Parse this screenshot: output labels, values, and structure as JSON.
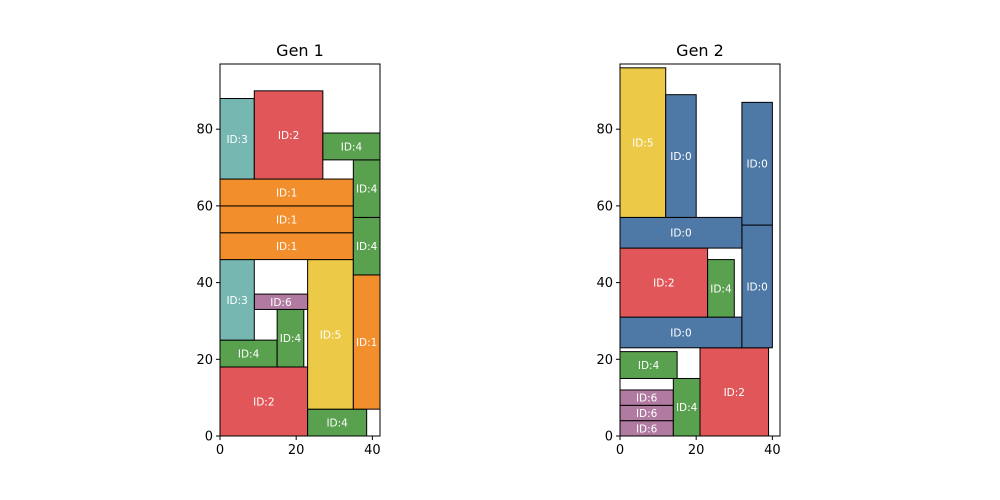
{
  "colors": {
    "ID:0": "#4e79a7",
    "ID:1": "#f28e2b",
    "ID:2": "#e15759",
    "ID:3": "#76b7b2",
    "ID:4": "#59a14f",
    "ID:5": "#edc948",
    "ID:6": "#b07aa1"
  },
  "chart_data": [
    {
      "type": "rectangle-packing",
      "title": "Gen 1",
      "xlim": [
        0,
        42
      ],
      "ylim": [
        0,
        97
      ],
      "xticks": [
        0,
        20,
        40
      ],
      "yticks": [
        0,
        20,
        40,
        60,
        80
      ],
      "grid": false,
      "rects": [
        {
          "label": "ID:2",
          "x": 0,
          "y": 0,
          "w": 23,
          "h": 18
        },
        {
          "label": "ID:4",
          "x": 23,
          "y": 0,
          "w": 15.5,
          "h": 7
        },
        {
          "label": "ID:5",
          "x": 23,
          "y": 7,
          "w": 12,
          "h": 39
        },
        {
          "label": "ID:1",
          "x": 35,
          "y": 7,
          "w": 7,
          "h": 35
        },
        {
          "label": "ID:4",
          "x": 0,
          "y": 18,
          "w": 15,
          "h": 7
        },
        {
          "label": "ID:4",
          "x": 15,
          "y": 18,
          "w": 7,
          "h": 15
        },
        {
          "label": "ID:6",
          "x": 9,
          "y": 33,
          "w": 14,
          "h": 4
        },
        {
          "label": "ID:3",
          "x": 0,
          "y": 25,
          "w": 9,
          "h": 21
        },
        {
          "label": "ID:1",
          "x": 0,
          "y": 46,
          "w": 35,
          "h": 7
        },
        {
          "label": "ID:1",
          "x": 0,
          "y": 53,
          "w": 35,
          "h": 7
        },
        {
          "label": "ID:1",
          "x": 0,
          "y": 60,
          "w": 35,
          "h": 7
        },
        {
          "label": "ID:4",
          "x": 35,
          "y": 42,
          "w": 7,
          "h": 15
        },
        {
          "label": "ID:4",
          "x": 35,
          "y": 57,
          "w": 7,
          "h": 15
        },
        {
          "label": "ID:3",
          "x": 0,
          "y": 67,
          "w": 9,
          "h": 21
        },
        {
          "label": "ID:2",
          "x": 9,
          "y": 67,
          "w": 18,
          "h": 23
        },
        {
          "label": "ID:4",
          "x": 27,
          "y": 72,
          "w": 15,
          "h": 7
        }
      ]
    },
    {
      "type": "rectangle-packing",
      "title": "Gen 2",
      "xlim": [
        0,
        42
      ],
      "ylim": [
        0,
        97
      ],
      "xticks": [
        0,
        20,
        40
      ],
      "yticks": [
        0,
        20,
        40,
        60,
        80
      ],
      "grid": false,
      "rects": [
        {
          "label": "ID:6",
          "x": 0,
          "y": 0,
          "w": 14,
          "h": 4
        },
        {
          "label": "ID:6",
          "x": 0,
          "y": 4,
          "w": 14,
          "h": 4
        },
        {
          "label": "ID:6",
          "x": 0,
          "y": 8,
          "w": 14,
          "h": 4
        },
        {
          "label": "ID:4",
          "x": 14,
          "y": 0,
          "w": 7,
          "h": 15
        },
        {
          "label": "ID:2",
          "x": 21,
          "y": 0,
          "w": 18,
          "h": 23
        },
        {
          "label": "ID:4",
          "x": 0,
          "y": 15,
          "w": 15,
          "h": 7
        },
        {
          "label": "ID:0",
          "x": 0,
          "y": 23,
          "w": 32,
          "h": 8
        },
        {
          "label": "ID:0",
          "x": 32,
          "y": 23,
          "w": 8,
          "h": 32
        },
        {
          "label": "ID:2",
          "x": 0,
          "y": 31,
          "w": 23,
          "h": 18
        },
        {
          "label": "ID:4",
          "x": 23,
          "y": 31,
          "w": 7,
          "h": 15
        },
        {
          "label": "ID:0",
          "x": 0,
          "y": 49,
          "w": 32,
          "h": 8
        },
        {
          "label": "ID:5",
          "x": 0,
          "y": 57,
          "w": 12,
          "h": 39
        },
        {
          "label": "ID:0",
          "x": 12,
          "y": 57,
          "w": 8,
          "h": 32
        },
        {
          "label": "ID:0",
          "x": 32,
          "y": 55,
          "w": 8,
          "h": 32
        }
      ]
    }
  ]
}
